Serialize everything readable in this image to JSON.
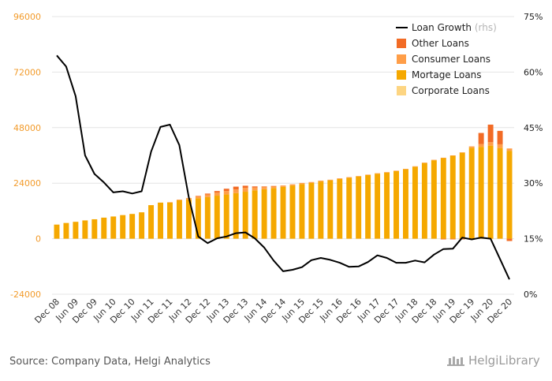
{
  "chart_data": {
    "type": "bar",
    "categories": [
      "Dec 08",
      "Mar 09",
      "Jun 09",
      "Sep 09",
      "Dec 09",
      "Mar 10",
      "Jun 10",
      "Sep 10",
      "Dec 10",
      "Mar 11",
      "Jun 11",
      "Sep 11",
      "Dec 11",
      "Mar 12",
      "Jun 12",
      "Sep 12",
      "Dec 12",
      "Mar 13",
      "Jun 13",
      "Sep 13",
      "Dec 13",
      "Mar 14",
      "Jun 14",
      "Sep 14",
      "Dec 14",
      "Mar 15",
      "Jun 15",
      "Sep 15",
      "Dec 15",
      "Mar 16",
      "Jun 16",
      "Sep 16",
      "Dec 16",
      "Mar 17",
      "Jun 17",
      "Sep 17",
      "Dec 17",
      "Mar 18",
      "Jun 18",
      "Sep 18",
      "Dec 18",
      "Mar 19",
      "Jun 19",
      "Sep 19",
      "Dec 19",
      "Mar 20",
      "Jun 20",
      "Sep 20",
      "Dec 20"
    ],
    "x_tick_labels": [
      "Dec 08",
      "Jun 09",
      "Dec 09",
      "Jun 10",
      "Dec 10",
      "Jun 11",
      "Dec 11",
      "Jun 12",
      "Dec 12",
      "Jun 13",
      "Dec 13",
      "Jun 14",
      "Dec 14",
      "Jun 15",
      "Dec 15",
      "Jun 16",
      "Dec 16",
      "Jun 17",
      "Dec 17",
      "Jun 18",
      "Dec 18",
      "Jun 19",
      "Dec 19",
      "Jun 20",
      "Dec 20"
    ],
    "series": [
      {
        "name": "Corporate Loans",
        "color": "#fdd582",
        "axis": "left",
        "values": [
          0,
          0,
          0,
          0,
          0,
          0,
          0,
          0,
          0,
          0,
          0,
          0,
          0,
          0,
          0,
          0,
          0,
          0,
          0,
          0,
          0,
          0,
          0,
          0,
          0,
          0,
          0,
          0,
          0,
          0,
          0,
          0,
          0,
          0,
          0,
          0,
          0,
          0,
          0,
          0,
          0,
          0,
          0,
          0,
          0,
          0,
          0,
          0,
          0
        ]
      },
      {
        "name": "Mortage Loans",
        "color": "#f5a800",
        "axis": "left",
        "values": [
          6100,
          6800,
          7300,
          7900,
          8400,
          9100,
          9600,
          10200,
          10700,
          11400,
          14500,
          15600,
          15600,
          16600,
          17000,
          17500,
          18000,
          18600,
          19100,
          19700,
          20300,
          20900,
          21400,
          21900,
          22400,
          23000,
          23600,
          24100,
          24700,
          25200,
          25800,
          26300,
          26900,
          27500,
          28100,
          28600,
          29200,
          30000,
          31100,
          32700,
          33900,
          34900,
          35900,
          37200,
          39300,
          39700,
          40200,
          39200,
          38000
        ]
      },
      {
        "name": "Consumer Loans",
        "color": "#ff9e48",
        "axis": "left",
        "values": [
          0,
          0,
          0,
          0,
          0,
          0,
          0,
          0,
          0,
          0,
          0,
          0,
          200,
          300,
          600,
          800,
          1100,
          1300,
          1500,
          1600,
          1700,
          1200,
          1000,
          800,
          600,
          500,
          500,
          400,
          400,
          300,
          300,
          300,
          200,
          200,
          200,
          200,
          200,
          200,
          200,
          200,
          200,
          100,
          100,
          100,
          600,
          1200,
          1500,
          1600,
          1000
        ]
      },
      {
        "name": "Other Loans",
        "color": "#f26b25",
        "axis": "left",
        "values": [
          0,
          0,
          0,
          0,
          0,
          0,
          0,
          0,
          0,
          0,
          0,
          0,
          0,
          0,
          0,
          200,
          400,
          700,
          1000,
          1200,
          900,
          500,
          200,
          100,
          0,
          0,
          0,
          0,
          0,
          0,
          0,
          0,
          0,
          0,
          0,
          0,
          0,
          0,
          0,
          0,
          0,
          -300,
          -300,
          -300,
          -100,
          4800,
          7600,
          5800,
          -1000
        ]
      },
      {
        "name": "Loan Growth",
        "color": "#000000",
        "axis": "right",
        "unit": "%",
        "values": [
          64.5,
          61.5,
          53.5,
          37.5,
          32.5,
          30.2,
          27.5,
          27.8,
          27.2,
          27.8,
          38.5,
          45.2,
          45.8,
          40.3,
          26.2,
          15.6,
          13.8,
          15.1,
          15.6,
          16.5,
          16.7,
          15.1,
          12.6,
          9.1,
          6.2,
          6.6,
          7.3,
          9.2,
          9.8,
          9.3,
          8.5,
          7.4,
          7.5,
          8.7,
          10.5,
          9.8,
          8.5,
          8.5,
          9.1,
          8.6,
          10.7,
          12.2,
          12.3,
          15.3,
          14.8,
          15.3,
          15.0,
          9.5,
          4.0
        ]
      }
    ],
    "y_left": {
      "min": -24000,
      "max": 96000,
      "ticks": [
        "96000",
        "72000",
        "48000",
        "24000",
        "0",
        "-24000"
      ]
    },
    "y_right": {
      "min": 0,
      "max": 75,
      "ticks": [
        "75%",
        "60%",
        "45%",
        "30%",
        "15%",
        "0%"
      ]
    },
    "legend_position": "top-right",
    "legend_items": [
      {
        "label": "Loan Growth",
        "suffix": "(rhs)",
        "kind": "line",
        "color": "#000000"
      },
      {
        "label": "Other Loans",
        "kind": "box",
        "color": "#f26b25"
      },
      {
        "label": "Consumer Loans",
        "kind": "box",
        "color": "#ff9e48"
      },
      {
        "label": "Mortage Loans",
        "kind": "box",
        "color": "#f5a800"
      },
      {
        "label": "Corporate Loans",
        "kind": "box",
        "color": "#fdd582"
      }
    ],
    "grid": "horizontal"
  },
  "footer": {
    "source": "Source: Company Data, Helgi Analytics",
    "brand": "HelgiLibrary"
  }
}
